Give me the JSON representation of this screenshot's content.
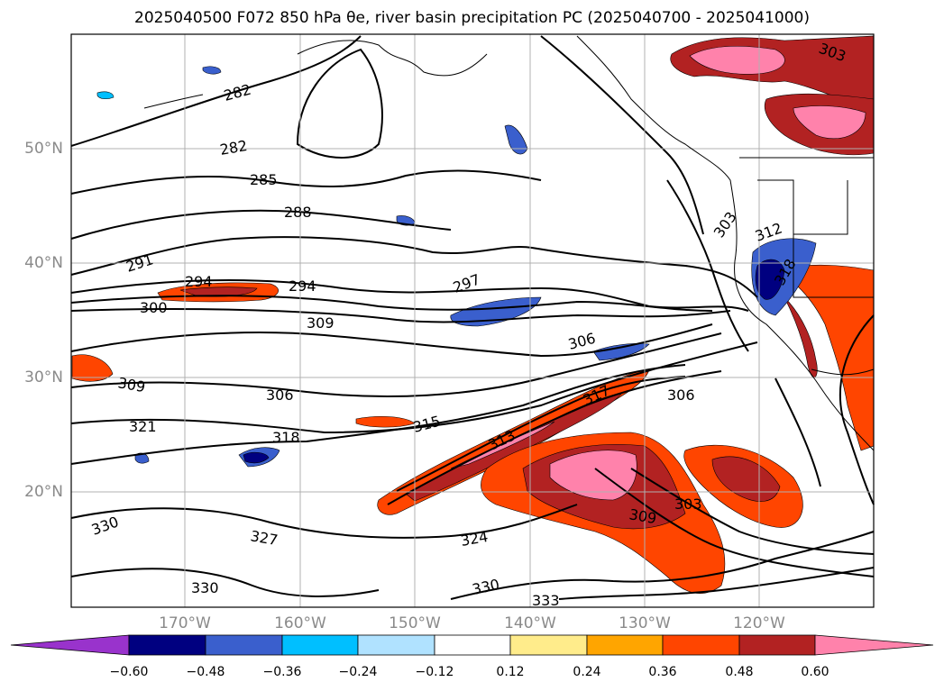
{
  "title": "2025040500 F072 850 hPa θe, river basin precipitation PC (2025040700 - 2025041000)",
  "map": {
    "latitude_labels": [
      "50°N",
      "40°N",
      "30°N",
      "20°N"
    ],
    "longitude_labels": [
      "170°W",
      "160°W",
      "150°W",
      "140°W",
      "130°W",
      "120°W"
    ],
    "contour_labels": [
      "282",
      "282",
      "285",
      "288",
      "291",
      "294",
      "294",
      "300",
      "309",
      "297",
      "306",
      "309",
      "306",
      "321",
      "315",
      "318",
      "317",
      "313",
      "303",
      "309",
      "324",
      "330",
      "327",
      "330",
      "330",
      "333",
      "303",
      "312",
      "318",
      "303",
      "306"
    ],
    "contour_color": "#000000",
    "gridline_color": "#b0b0b0"
  },
  "colorbar": {
    "tick_labels": [
      "−0.60",
      "−0.48",
      "−0.36",
      "−0.24",
      "−0.12",
      "0.12",
      "0.24",
      "0.36",
      "0.48",
      "0.60"
    ],
    "colors": [
      "#9933cc",
      "#000080",
      "#3a5fcd",
      "#00bfff",
      "#b0e2ff",
      "#ffffff",
      "#ffec8b",
      "#ffa500",
      "#ff4500",
      "#b22222",
      "#ff82ab"
    ]
  }
}
